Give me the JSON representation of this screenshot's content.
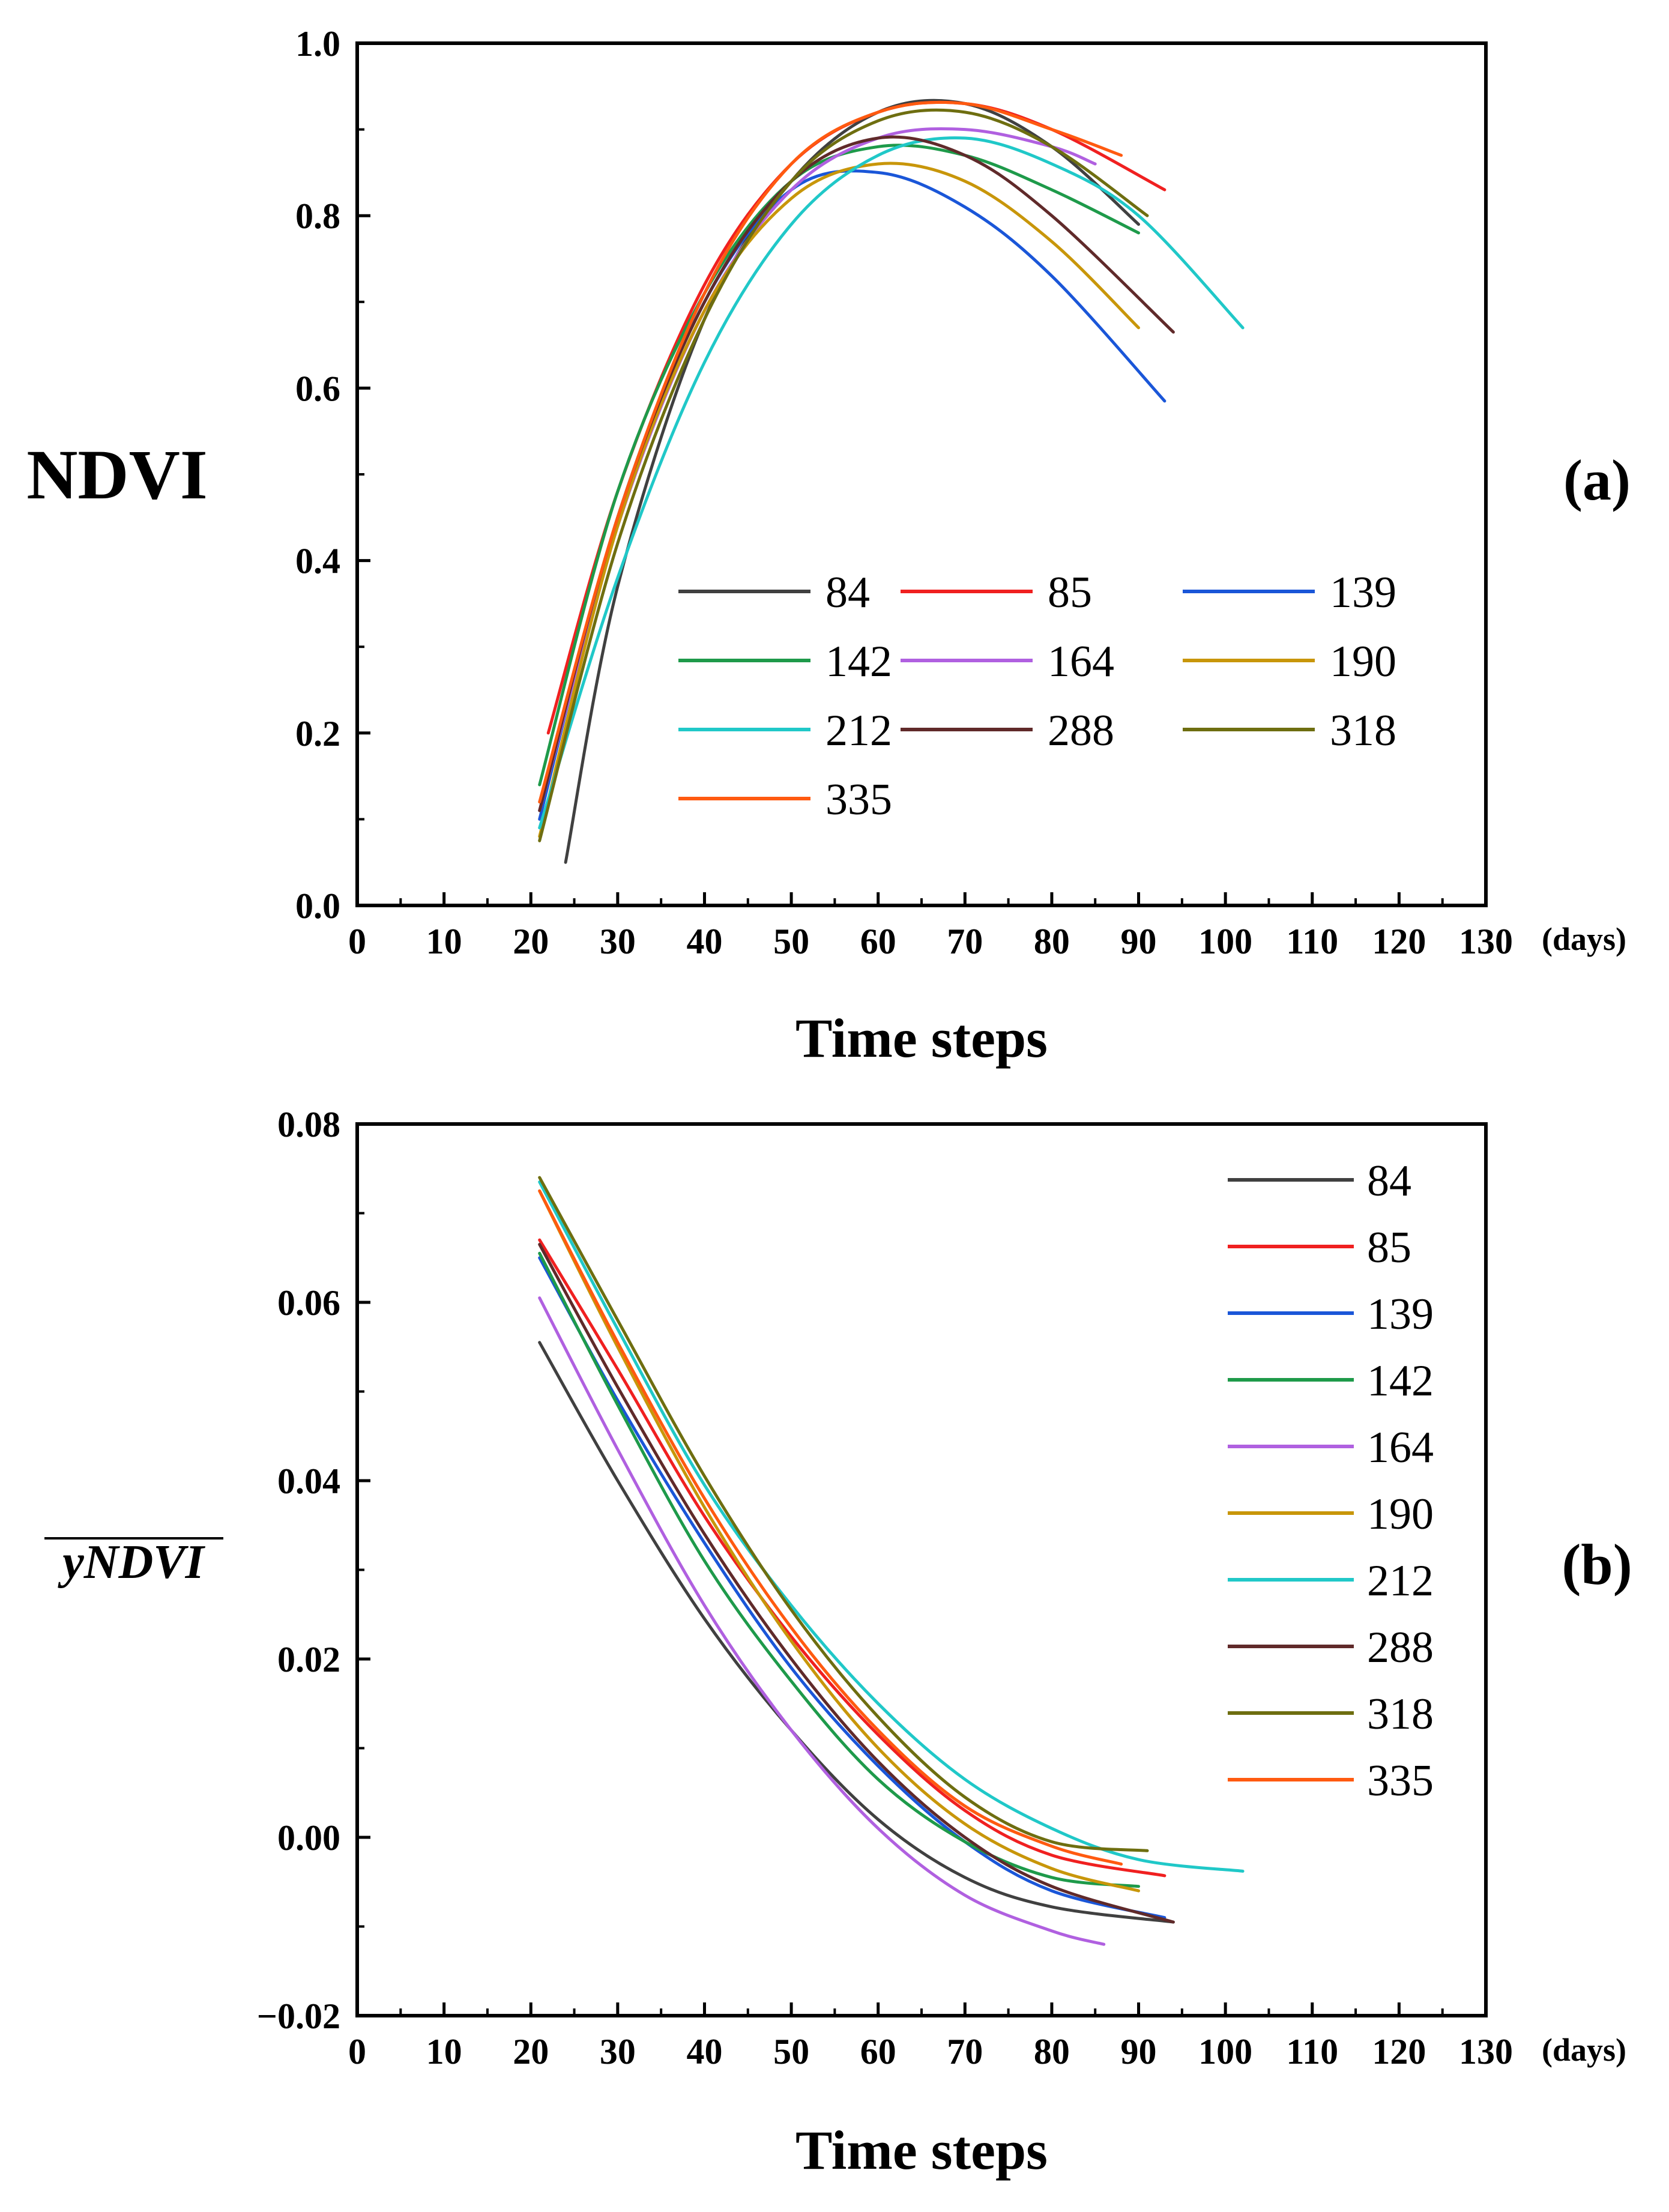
{
  "chart_data": [
    {
      "type": "line",
      "panel_label": "(a)",
      "ylabel": "NDVI",
      "xlabel": "Time steps",
      "x_unit": "(days)",
      "xlim": [
        0,
        130
      ],
      "ylim": [
        0.0,
        1.0
      ],
      "xticks": [
        0,
        10,
        20,
        30,
        40,
        50,
        60,
        70,
        80,
        90,
        100,
        110,
        120,
        130
      ],
      "xtick_labels": [
        "0",
        "10",
        "20",
        "30",
        "40",
        "50",
        "60",
        "70",
        "80",
        "90",
        "100",
        "110",
        "120",
        "130"
      ],
      "yticks": [
        0.0,
        0.2,
        0.4,
        0.6,
        0.8,
        1.0
      ],
      "ytick_labels": [
        "0.0",
        "0.2",
        "0.4",
        "0.6",
        "0.8",
        "1.0"
      ],
      "legend": {
        "placement": "lower-right",
        "columns": 3
      },
      "series": [
        {
          "name": "84",
          "color": "#404040",
          "x": [
            24,
            30,
            40,
            50,
            60,
            70,
            80,
            90
          ],
          "y": [
            0.05,
            0.37,
            0.68,
            0.84,
            0.92,
            0.93,
            0.88,
            0.79
          ]
        },
        {
          "name": "85",
          "color": "#f02020",
          "x": [
            22,
            30,
            40,
            50,
            60,
            70,
            80,
            93
          ],
          "y": [
            0.2,
            0.48,
            0.72,
            0.86,
            0.92,
            0.93,
            0.9,
            0.83
          ]
        },
        {
          "name": "139",
          "color": "#1a56d8",
          "x": [
            21,
            30,
            40,
            50,
            60,
            70,
            80,
            93
          ],
          "y": [
            0.1,
            0.45,
            0.7,
            0.83,
            0.85,
            0.81,
            0.73,
            0.585
          ]
        },
        {
          "name": "142",
          "color": "#1e9a4a",
          "x": [
            21,
            30,
            40,
            50,
            60,
            70,
            80,
            90
          ],
          "y": [
            0.14,
            0.48,
            0.71,
            0.84,
            0.88,
            0.87,
            0.83,
            0.78
          ]
        },
        {
          "name": "164",
          "color": "#b060e0",
          "x": [
            21,
            30,
            40,
            50,
            60,
            70,
            80,
            85
          ],
          "y": [
            0.11,
            0.44,
            0.69,
            0.83,
            0.89,
            0.9,
            0.88,
            0.86
          ]
        },
        {
          "name": "190",
          "color": "#c8960a",
          "x": [
            21,
            30,
            40,
            50,
            60,
            70,
            80,
            90
          ],
          "y": [
            0.08,
            0.44,
            0.69,
            0.82,
            0.86,
            0.84,
            0.77,
            0.67
          ]
        },
        {
          "name": "212",
          "color": "#20c8c8",
          "x": [
            21,
            30,
            40,
            50,
            60,
            70,
            80,
            90,
            102
          ],
          "y": [
            0.09,
            0.38,
            0.63,
            0.79,
            0.87,
            0.89,
            0.86,
            0.8,
            0.67
          ]
        },
        {
          "name": "288",
          "color": "#602a2a",
          "x": [
            21,
            30,
            40,
            50,
            60,
            70,
            80,
            94
          ],
          "y": [
            0.11,
            0.45,
            0.7,
            0.84,
            0.89,
            0.87,
            0.8,
            0.665
          ]
        },
        {
          "name": "318",
          "color": "#6e6e10",
          "x": [
            21,
            30,
            40,
            50,
            60,
            70,
            80,
            91
          ],
          "y": [
            0.075,
            0.42,
            0.68,
            0.84,
            0.91,
            0.92,
            0.88,
            0.8
          ]
        },
        {
          "name": "335",
          "color": "#ff5a10",
          "x": [
            21,
            30,
            40,
            50,
            60,
            70,
            80,
            88
          ],
          "y": [
            0.12,
            0.45,
            0.71,
            0.86,
            0.92,
            0.93,
            0.9,
            0.87
          ]
        }
      ]
    },
    {
      "type": "line",
      "panel_label": "(b)",
      "ylabel": "yNDVI",
      "ylabel_overline": true,
      "xlabel": "Time steps",
      "x_unit": "(days)",
      "xlim": [
        0,
        130
      ],
      "ylim": [
        -0.02,
        0.08
      ],
      "xticks": [
        0,
        10,
        20,
        30,
        40,
        50,
        60,
        70,
        80,
        90,
        100,
        110,
        120,
        130
      ],
      "xtick_labels": [
        "0",
        "10",
        "20",
        "30",
        "40",
        "50",
        "60",
        "70",
        "80",
        "90",
        "100",
        "110",
        "120",
        "130"
      ],
      "yticks": [
        -0.02,
        0.0,
        0.02,
        0.04,
        0.06,
        0.08
      ],
      "ytick_labels": [
        "−0.02",
        "0.00",
        "0.02",
        "0.04",
        "0.06",
        "0.08"
      ],
      "legend": {
        "placement": "top-right",
        "columns": 1
      },
      "series": [
        {
          "name": "84",
          "color": "#404040",
          "x": [
            21,
            30,
            40,
            50,
            60,
            70,
            80,
            94
          ],
          "y": [
            0.0555,
            0.04,
            0.0245,
            0.012,
            0.002,
            -0.0045,
            -0.0078,
            -0.0095
          ]
        },
        {
          "name": "85",
          "color": "#f02020",
          "x": [
            21,
            30,
            40,
            50,
            60,
            70,
            80,
            93
          ],
          "y": [
            0.067,
            0.0525,
            0.036,
            0.0225,
            0.0115,
            0.003,
            -0.002,
            -0.0043
          ]
        },
        {
          "name": "139",
          "color": "#1a56d8",
          "x": [
            21,
            30,
            40,
            50,
            60,
            70,
            80,
            93
          ],
          "y": [
            0.065,
            0.049,
            0.033,
            0.019,
            0.008,
            -0.0005,
            -0.006,
            -0.009
          ]
        },
        {
          "name": "142",
          "color": "#1e9a4a",
          "x": [
            21,
            30,
            40,
            50,
            60,
            70,
            80,
            90
          ],
          "y": [
            0.0655,
            0.0485,
            0.031,
            0.0175,
            0.0065,
            -0.0005,
            -0.0045,
            -0.0055
          ]
        },
        {
          "name": "164",
          "color": "#b060e0",
          "x": [
            21,
            30,
            40,
            50,
            60,
            70,
            80,
            86
          ],
          "y": [
            0.0605,
            0.0435,
            0.026,
            0.012,
            0.001,
            -0.0065,
            -0.0105,
            -0.012
          ]
        },
        {
          "name": "190",
          "color": "#c8960a",
          "x": [
            21,
            30,
            40,
            50,
            60,
            70,
            80,
            90
          ],
          "y": [
            0.0725,
            0.055,
            0.037,
            0.022,
            0.01,
            0.0015,
            -0.0035,
            -0.006
          ]
        },
        {
          "name": "212",
          "color": "#20c8c8",
          "x": [
            21,
            30,
            40,
            50,
            60,
            70,
            80,
            90,
            102
          ],
          "y": [
            0.0735,
            0.057,
            0.0395,
            0.026,
            0.015,
            0.0065,
            0.001,
            -0.0025,
            -0.0038
          ]
        },
        {
          "name": "288",
          "color": "#602a2a",
          "x": [
            21,
            30,
            40,
            50,
            60,
            70,
            80,
            94
          ],
          "y": [
            0.0665,
            0.0505,
            0.034,
            0.02,
            0.0085,
            0.0,
            -0.0055,
            -0.0095
          ]
        },
        {
          "name": "318",
          "color": "#6e6e10",
          "x": [
            21,
            30,
            40,
            50,
            60,
            70,
            80,
            91
          ],
          "y": [
            0.074,
            0.058,
            0.0405,
            0.0255,
            0.0135,
            0.0045,
            -0.0005,
            -0.0015
          ]
        },
        {
          "name": "335",
          "color": "#ff5a10",
          "x": [
            21,
            30,
            40,
            50,
            60,
            70,
            80,
            88
          ],
          "y": [
            0.0725,
            0.0555,
            0.038,
            0.0235,
            0.012,
            0.0035,
            -0.001,
            -0.003
          ]
        }
      ]
    }
  ]
}
